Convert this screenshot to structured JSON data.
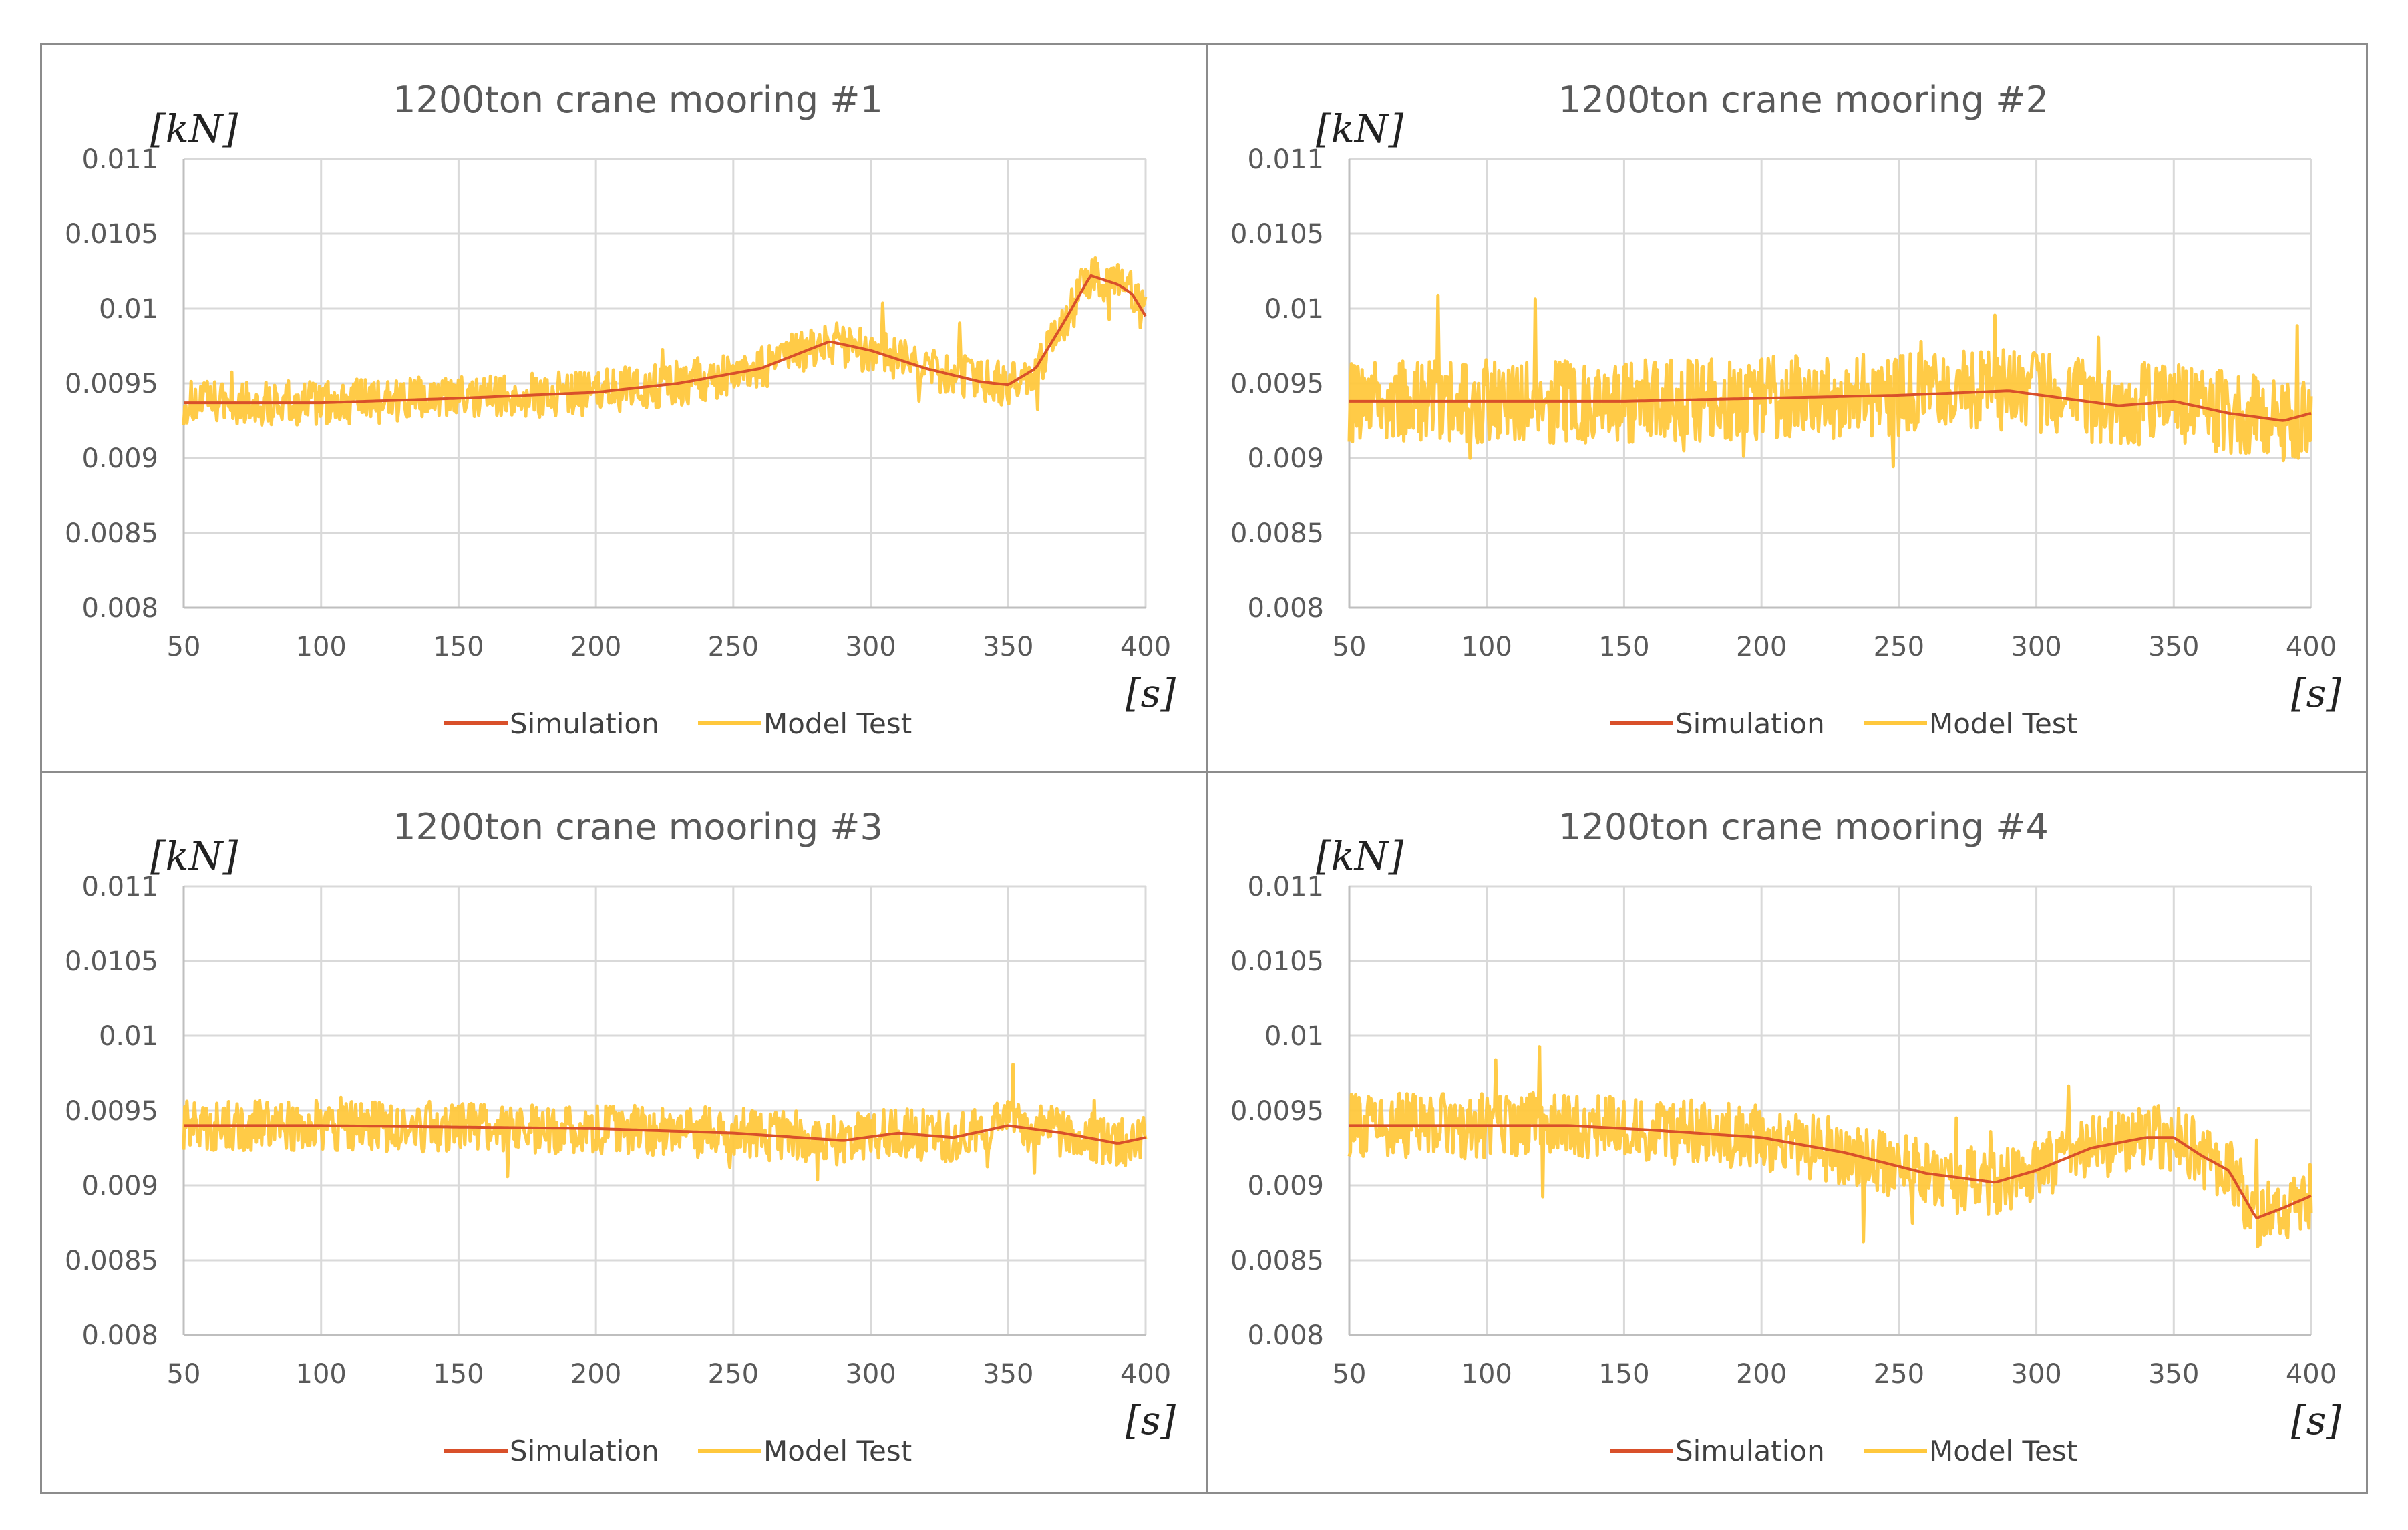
{
  "colors": {
    "simulation": "#d9502a",
    "model_test": "#ffc83d",
    "grid": "#d9d9d9",
    "axis": "#bfbfbf",
    "border": "#8c8c8c"
  },
  "chart_data": [
    {
      "type": "line",
      "title": "1200ton crane mooring #1",
      "ylabel": "[kN]",
      "xlabel": "[s]",
      "xlim": [
        50,
        400
      ],
      "ylim": [
        0.008,
        0.011
      ],
      "x_ticks": [
        50,
        100,
        150,
        200,
        250,
        300,
        350,
        400
      ],
      "y_ticks": [
        0.008,
        0.0085,
        0.009,
        0.0095,
        0.01,
        0.0105,
        0.011
      ],
      "x_tick_labels": [
        "50",
        "100",
        "150",
        "200",
        "250",
        "300",
        "350",
        "400"
      ],
      "y_tick_labels": [
        "0.008",
        "0.0085",
        "0.009",
        "0.0095",
        "0.01",
        "0.0105",
        "0.011"
      ],
      "legend": [
        "Simulation",
        "Model Test"
      ],
      "series": [
        {
          "name": "Simulation",
          "x": [
            50,
            100,
            150,
            200,
            230,
            260,
            285,
            300,
            320,
            340,
            350,
            360,
            370,
            380,
            390,
            395,
            400
          ],
          "values": [
            0.00937,
            0.00937,
            0.0094,
            0.00944,
            0.0095,
            0.0096,
            0.00978,
            0.00972,
            0.0096,
            0.00951,
            0.00949,
            0.0096,
            0.0099,
            0.01022,
            0.01016,
            0.0101,
            0.00995
          ]
        },
        {
          "name": "Model Test",
          "x": [
            50,
            100,
            150,
            200,
            230,
            260,
            285,
            300,
            320,
            340,
            350,
            360,
            370,
            380,
            390,
            395,
            400
          ],
          "values": [
            0.00937,
            0.00937,
            0.0094,
            0.00944,
            0.0095,
            0.0096,
            0.00978,
            0.00972,
            0.0096,
            0.00951,
            0.00949,
            0.0096,
            0.0099,
            0.01022,
            0.01016,
            0.0101,
            0.00995
          ],
          "noise_band": 0.00015
        }
      ]
    },
    {
      "type": "line",
      "title": "1200ton crane mooring #2",
      "ylabel": "[kN]",
      "xlabel": "[s]",
      "xlim": [
        50,
        400
      ],
      "ylim": [
        0.008,
        0.011
      ],
      "x_ticks": [
        50,
        100,
        150,
        200,
        250,
        300,
        350,
        400
      ],
      "y_ticks": [
        0.008,
        0.0085,
        0.009,
        0.0095,
        0.01,
        0.0105,
        0.011
      ],
      "x_tick_labels": [
        "50",
        "100",
        "150",
        "200",
        "250",
        "300",
        "350",
        "400"
      ],
      "y_tick_labels": [
        "0.008",
        "0.0085",
        "0.009",
        "0.0095",
        "0.01",
        "0.0105",
        "0.011"
      ],
      "legend": [
        "Simulation",
        "Model Test"
      ],
      "series": [
        {
          "name": "Simulation",
          "x": [
            50,
            100,
            150,
            200,
            250,
            290,
            310,
            330,
            350,
            370,
            390,
            400
          ],
          "values": [
            0.00938,
            0.00938,
            0.00938,
            0.0094,
            0.00942,
            0.00945,
            0.0094,
            0.00935,
            0.00938,
            0.0093,
            0.00925,
            0.0093
          ]
        },
        {
          "name": "Model Test",
          "x": [
            50,
            100,
            150,
            200,
            250,
            290,
            310,
            330,
            350,
            370,
            390,
            400
          ],
          "values": [
            0.00938,
            0.00938,
            0.00938,
            0.0094,
            0.00942,
            0.00945,
            0.0094,
            0.00935,
            0.00938,
            0.0093,
            0.00925,
            0.0093
          ],
          "noise_band": 0.00028
        }
      ]
    },
    {
      "type": "line",
      "title": "1200ton crane mooring #3",
      "ylabel": "[kN]",
      "xlabel": "[s]",
      "xlim": [
        50,
        400
      ],
      "ylim": [
        0.008,
        0.011
      ],
      "x_ticks": [
        50,
        100,
        150,
        200,
        250,
        300,
        350,
        400
      ],
      "y_ticks": [
        0.008,
        0.0085,
        0.009,
        0.0095,
        0.01,
        0.0105,
        0.011
      ],
      "x_tick_labels": [
        "50",
        "100",
        "150",
        "200",
        "250",
        "300",
        "350",
        "400"
      ],
      "y_tick_labels": [
        "0.008",
        "0.0085",
        "0.009",
        "0.0095",
        "0.01",
        "0.0105",
        "0.011"
      ],
      "legend": [
        "Simulation",
        "Model Test"
      ],
      "series": [
        {
          "name": "Simulation",
          "x": [
            50,
            100,
            150,
            200,
            250,
            290,
            310,
            330,
            350,
            370,
            390,
            400
          ],
          "values": [
            0.0094,
            0.0094,
            0.00939,
            0.00938,
            0.00935,
            0.0093,
            0.00935,
            0.00932,
            0.0094,
            0.00935,
            0.00928,
            0.00932
          ]
        },
        {
          "name": "Model Test",
          "x": [
            50,
            100,
            150,
            200,
            250,
            290,
            310,
            330,
            350,
            370,
            390,
            400
          ],
          "values": [
            0.0094,
            0.0094,
            0.00939,
            0.00938,
            0.00935,
            0.0093,
            0.00935,
            0.00932,
            0.0094,
            0.00935,
            0.00928,
            0.00932
          ],
          "noise_band": 0.00017
        }
      ]
    },
    {
      "type": "line",
      "title": "1200ton crane mooring #4",
      "ylabel": "[kN]",
      "xlabel": "[s]",
      "xlim": [
        50,
        400
      ],
      "ylim": [
        0.008,
        0.011
      ],
      "x_ticks": [
        50,
        100,
        150,
        200,
        250,
        300,
        350,
        400
      ],
      "y_ticks": [
        0.008,
        0.0085,
        0.009,
        0.0095,
        0.01,
        0.0105,
        0.011
      ],
      "x_tick_labels": [
        "50",
        "100",
        "150",
        "200",
        "250",
        "300",
        "350",
        "400"
      ],
      "y_tick_labels": [
        "0.008",
        "0.0085",
        "0.009",
        "0.0095",
        "0.01",
        "0.0105",
        "0.011"
      ],
      "legend": [
        "Simulation",
        "Model Test"
      ],
      "series": [
        {
          "name": "Simulation",
          "x": [
            50,
            100,
            130,
            160,
            200,
            230,
            260,
            285,
            300,
            320,
            340,
            350,
            360,
            370,
            380,
            390,
            400
          ],
          "values": [
            0.0094,
            0.0094,
            0.0094,
            0.00937,
            0.00932,
            0.00922,
            0.00908,
            0.00902,
            0.0091,
            0.00925,
            0.00932,
            0.00932,
            0.0092,
            0.0091,
            0.00878,
            0.00885,
            0.00893
          ]
        },
        {
          "name": "Model Test",
          "x": [
            50,
            100,
            130,
            160,
            200,
            230,
            260,
            285,
            300,
            320,
            340,
            350,
            360,
            370,
            380,
            390,
            400
          ],
          "values": [
            0.0094,
            0.0094,
            0.0094,
            0.00937,
            0.00932,
            0.00922,
            0.00908,
            0.00902,
            0.0091,
            0.00925,
            0.00932,
            0.00932,
            0.0092,
            0.0091,
            0.00878,
            0.00885,
            0.00893
          ],
          "noise_band": 0.00022
        }
      ]
    }
  ]
}
